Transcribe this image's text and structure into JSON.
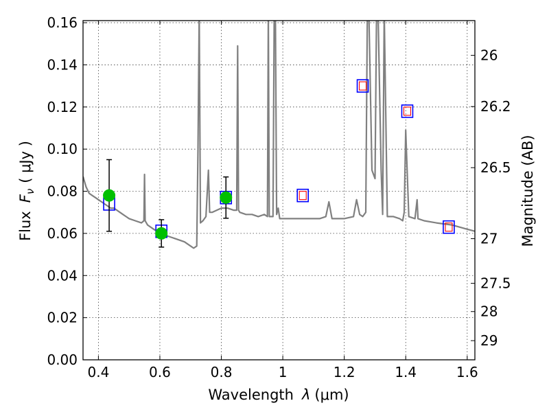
{
  "chart_data": {
    "type": "line",
    "xlabel": {
      "text": "Wavelength",
      "symbol": "λ",
      "unit": "(μm)"
    },
    "ylabel": {
      "text": "Flux",
      "symbol": "F",
      "subscript": "ν",
      "unit": "( μJy )"
    },
    "y2label": "Magnitude (AB)",
    "xlim": [
      0.35,
      1.625
    ],
    "ylim": [
      0,
      0.161
    ],
    "x_ticks": [
      0.4,
      0.6,
      0.8,
      1.0,
      1.2,
      1.4,
      1.6
    ],
    "x_tick_labels": [
      "0.4",
      "0.6",
      "0.8",
      "1",
      "1.2",
      "1.4",
      "1.6"
    ],
    "y_ticks": [
      0,
      0.02,
      0.04,
      0.06,
      0.08,
      0.1,
      0.12,
      0.14,
      0.16
    ],
    "y_tick_labels": [
      "0.00",
      "0.02",
      "0.04",
      "0.06",
      "0.08",
      "0.10",
      "0.12",
      "0.14",
      "0.16"
    ],
    "y2_ticks": [
      {
        "label": "26",
        "flux": 0.1445
      },
      {
        "label": "26.2",
        "flux": 0.1202
      },
      {
        "label": "26.5",
        "flux": 0.0912
      },
      {
        "label": "27",
        "flux": 0.0575
      },
      {
        "label": "27.5",
        "flux": 0.0363
      },
      {
        "label": "28",
        "flux": 0.0229
      },
      {
        "label": "29",
        "flux": 0.0091
      }
    ],
    "grid": true,
    "colors": {
      "spectrum": "#808080",
      "observed": "#00c000",
      "model_box": "#0000ff",
      "model_inner": "#ff0000"
    },
    "series": [
      {
        "kind": "spectrum",
        "x": [
          0.35,
          0.36,
          0.37,
          0.38,
          0.39,
          0.4,
          0.41,
          0.42,
          0.43,
          0.44,
          0.45,
          0.46,
          0.47,
          0.48,
          0.49,
          0.5,
          0.52,
          0.54,
          0.548,
          0.55,
          0.552,
          0.56,
          0.58,
          0.6,
          0.62,
          0.64,
          0.66,
          0.68,
          0.7,
          0.71,
          0.72,
          0.724,
          0.728,
          0.732,
          0.74,
          0.75,
          0.758,
          0.762,
          0.77,
          0.8,
          0.82,
          0.84,
          0.85,
          0.853,
          0.856,
          0.86,
          0.88,
          0.9,
          0.92,
          0.94,
          0.95,
          0.953,
          0.956,
          0.96,
          0.968,
          0.972,
          0.976,
          0.98,
          0.985,
          0.99,
          1.0,
          1.04,
          1.08,
          1.12,
          1.14,
          1.15,
          1.16,
          1.2,
          1.23,
          1.24,
          1.25,
          1.26,
          1.27,
          1.275,
          1.28,
          1.29,
          1.3,
          1.305,
          1.31,
          1.32,
          1.325,
          1.33,
          1.34,
          1.36,
          1.38,
          1.39,
          1.395,
          1.4,
          1.41,
          1.43,
          1.437,
          1.44,
          1.46,
          1.5,
          1.55,
          1.6,
          1.625
        ],
        "y": [
          0.087,
          0.082,
          0.079,
          0.078,
          0.077,
          0.076,
          0.075,
          0.074,
          0.073,
          0.072,
          0.072,
          0.071,
          0.07,
          0.069,
          0.068,
          0.067,
          0.066,
          0.065,
          0.066,
          0.088,
          0.066,
          0.064,
          0.062,
          0.06,
          0.059,
          0.058,
          0.057,
          0.056,
          0.054,
          0.053,
          0.054,
          0.1,
          0.165,
          0.065,
          0.066,
          0.068,
          0.09,
          0.07,
          0.07,
          0.072,
          0.072,
          0.071,
          0.071,
          0.149,
          0.071,
          0.07,
          0.069,
          0.069,
          0.068,
          0.069,
          0.068,
          0.165,
          0.068,
          0.068,
          0.068,
          0.165,
          0.165,
          0.069,
          0.072,
          0.067,
          0.067,
          0.067,
          0.067,
          0.067,
          0.068,
          0.075,
          0.067,
          0.067,
          0.068,
          0.076,
          0.069,
          0.068,
          0.07,
          0.165,
          0.165,
          0.09,
          0.086,
          0.165,
          0.165,
          0.09,
          0.069,
          0.165,
          0.068,
          0.068,
          0.067,
          0.066,
          0.07,
          0.109,
          0.068,
          0.067,
          0.076,
          0.067,
          0.066,
          0.065,
          0.064,
          0.062,
          0.061
        ]
      },
      {
        "kind": "observed",
        "x": [
          0.435,
          0.605,
          0.815
        ],
        "y": [
          0.078,
          0.06,
          0.077
        ],
        "yerr": [
          0.017,
          0.0065,
          0.0098
        ]
      },
      {
        "kind": "model",
        "x": [
          0.435,
          0.605,
          0.815,
          1.065,
          1.26,
          1.405,
          1.54
        ],
        "y": [
          0.074,
          0.061,
          0.077,
          0.078,
          0.13,
          0.118,
          0.063
        ],
        "inner": [
          false,
          false,
          false,
          true,
          true,
          true,
          true
        ]
      }
    ]
  }
}
